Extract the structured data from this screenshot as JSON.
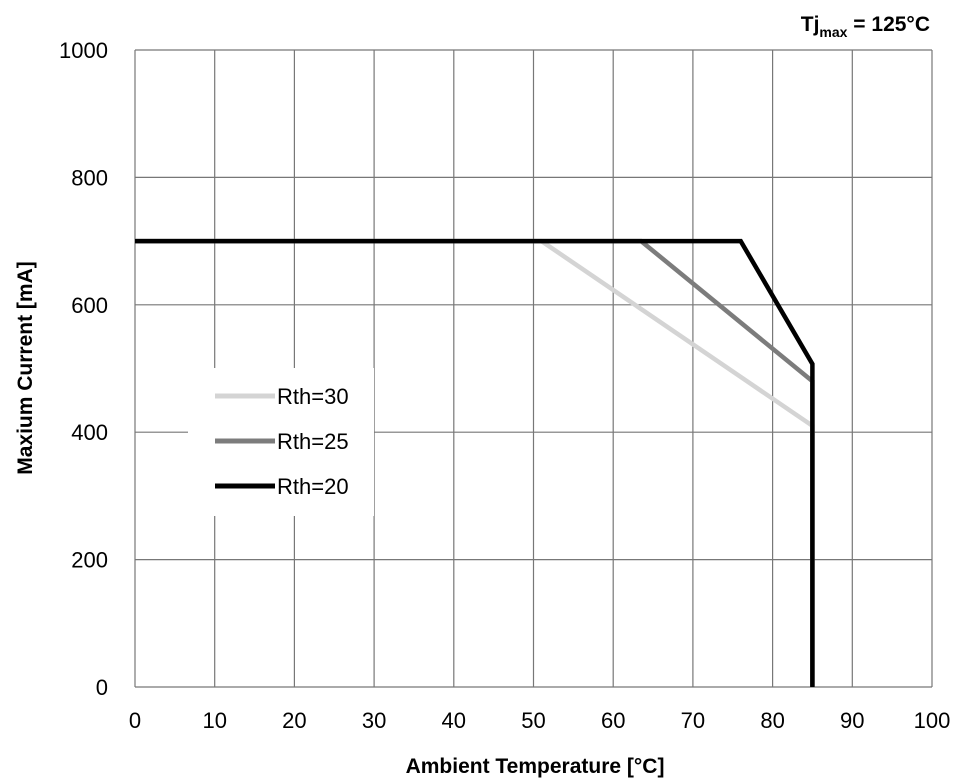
{
  "chart_data": {
    "type": "line",
    "title": "",
    "annotation": {
      "base": "Tj",
      "sub": "max",
      "rest": " = 125°C"
    },
    "xlabel": "Ambient Temperature [°C]",
    "ylabel": "Maxium Current [mA]",
    "xlim": [
      0,
      100
    ],
    "ylim": [
      0,
      1000
    ],
    "xticks": [
      0,
      10,
      20,
      30,
      40,
      50,
      60,
      70,
      80,
      90,
      100
    ],
    "yticks": [
      0,
      200,
      400,
      600,
      800,
      1000
    ],
    "grid": true,
    "legend": {
      "position": "left-middle"
    },
    "series": [
      {
        "name": "Rth=30",
        "color": "#d4d4d4",
        "points": [
          [
            0,
            700
          ],
          [
            51,
            700
          ],
          [
            85,
            410
          ],
          [
            85,
            0
          ]
        ]
      },
      {
        "name": "Rth=25",
        "color": "#7c7c7c",
        "points": [
          [
            0,
            700
          ],
          [
            63.5,
            700
          ],
          [
            85,
            480
          ],
          [
            85,
            0
          ]
        ]
      },
      {
        "name": "Rth=20",
        "color": "#000000",
        "points": [
          [
            0,
            700
          ],
          [
            76,
            700
          ],
          [
            85,
            507
          ],
          [
            85,
            0
          ]
        ]
      }
    ]
  }
}
